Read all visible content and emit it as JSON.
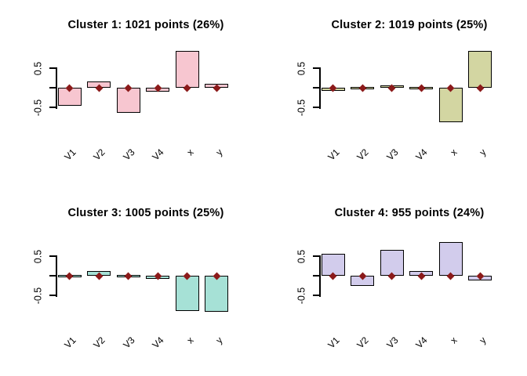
{
  "figure": {
    "background_color": "#ffffff",
    "axis_color": "#000000",
    "marker_color": "#8b1a1a",
    "y_axis": {
      "tick_labels": [
        "0.5",
        "-0.5"
      ],
      "tick_values": [
        0.5,
        0,
        -0.5
      ]
    }
  },
  "chart_data": [
    {
      "type": "bar",
      "title": "Cluster 1: 1021 points (26%)",
      "categories": [
        "V1",
        "V2",
        "V3",
        "V4",
        "x",
        "y"
      ],
      "values": [
        -0.45,
        0.17,
        -0.64,
        -0.09,
        0.95,
        0.1
      ],
      "markers": [
        0,
        0,
        0,
        0,
        0,
        0
      ],
      "bar_color": "#f7c6d0",
      "ylim": [
        -0.95,
        1.05
      ],
      "yticks": [
        -0.5,
        0,
        0.5
      ],
      "grid": false,
      "legend": "none"
    },
    {
      "type": "bar",
      "title": "Cluster 2: 1019 points (25%)",
      "categories": [
        "V1",
        "V2",
        "V3",
        "V4",
        "x",
        "y"
      ],
      "values": [
        -0.07,
        -0.01,
        0.07,
        0.01,
        -0.87,
        0.95
      ],
      "markers": [
        0,
        0,
        0,
        0,
        0,
        0
      ],
      "bar_color": "#d3d6a2",
      "ylim": [
        -0.95,
        1.05
      ],
      "yticks": [
        -0.5,
        0,
        0.5
      ],
      "grid": false,
      "legend": "none"
    },
    {
      "type": "bar",
      "title": "Cluster 3: 1005 points (25%)",
      "categories": [
        "V1",
        "V2",
        "V3",
        "V4",
        "x",
        "y"
      ],
      "values": [
        -0.02,
        0.12,
        -0.02,
        -0.08,
        -0.89,
        -0.92
      ],
      "markers": [
        0,
        0,
        0,
        0,
        0,
        0
      ],
      "bar_color": "#a6e1d6",
      "ylim": [
        -0.95,
        1.05
      ],
      "yticks": [
        -0.5,
        0,
        0.5
      ],
      "grid": false,
      "legend": "none"
    },
    {
      "type": "bar",
      "title": "Cluster 4: 955 points (24%)",
      "categories": [
        "V1",
        "V2",
        "V3",
        "V4",
        "x",
        "y"
      ],
      "values": [
        0.56,
        -0.26,
        0.66,
        0.13,
        0.87,
        -0.11
      ],
      "markers": [
        0,
        0,
        0,
        0,
        0,
        0
      ],
      "bar_color": "#d2ccec",
      "ylim": [
        -0.95,
        1.05
      ],
      "yticks": [
        -0.5,
        0,
        0.5
      ],
      "grid": false,
      "legend": "none"
    }
  ]
}
